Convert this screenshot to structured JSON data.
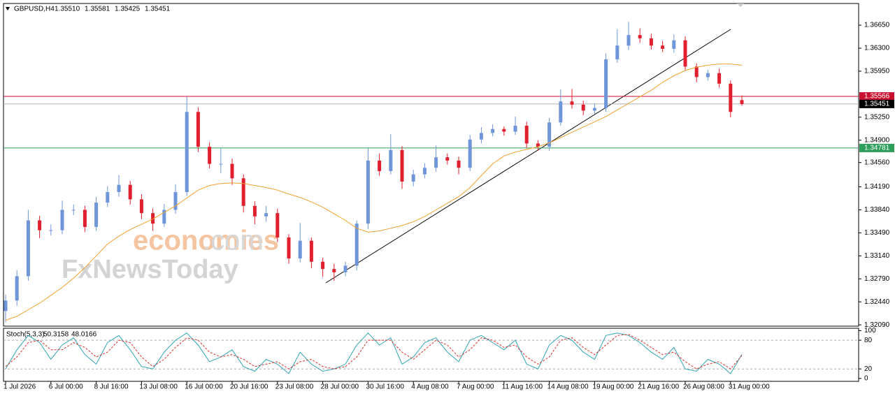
{
  "chart_data": [
    {
      "type": "candlestick",
      "title": "GBPUSD,H4",
      "ohlc_labels": [
        "1.35510",
        "1.35581",
        "1.35425",
        "1.35451"
      ],
      "categories": [
        "1 Jul 2026",
        null,
        null,
        null,
        "6 Jul 00:00",
        null,
        null,
        null,
        "8 Jul 16:00",
        null,
        null,
        null,
        "13 Jul 08:00",
        null,
        null,
        null,
        "16 Jul 00:00",
        null,
        null,
        null,
        "20 Jul 16:00",
        null,
        null,
        null,
        "23 Jul 08:00",
        null,
        null,
        null,
        "28 Jul 00:00",
        null,
        null,
        null,
        "30 Jul 16:00",
        null,
        null,
        null,
        "4 Aug 08:00",
        null,
        null,
        null,
        "7 Aug 00:00",
        null,
        null,
        null,
        "11 Aug 16:00",
        null,
        null,
        null,
        "14 Aug 08:00",
        null,
        null,
        null,
        "19 Aug 00:00",
        null,
        null,
        null,
        "21 Aug 16:00",
        null,
        null,
        null,
        "26 Aug 08:00",
        null,
        null,
        null,
        "31 Aug 00:00",
        null
      ],
      "open": [
        1.323,
        1.3246,
        1.3283,
        1.3368,
        1.3353,
        1.3353,
        1.3384,
        1.3384,
        1.3358,
        1.3395,
        1.3411,
        1.3422,
        1.34,
        1.3379,
        1.3363,
        1.3384,
        1.3411,
        1.3533,
        1.348,
        1.3454,
        1.3454,
        1.3432,
        1.339,
        1.3374,
        1.3379,
        1.3342,
        1.331,
        1.3337,
        1.3305,
        1.3294,
        1.3289,
        1.3299,
        1.3363,
        1.3459,
        1.3443,
        1.3475,
        1.3427,
        1.3438,
        1.3448,
        1.3464,
        1.3459,
        1.3448,
        1.3491,
        1.3501,
        1.3507,
        1.3503,
        1.3512,
        1.3485,
        1.348,
        1.3517,
        1.3549,
        1.3544,
        1.3535,
        1.3539,
        1.3613,
        1.3634,
        1.365,
        1.3645,
        1.3634,
        1.3629,
        1.3642,
        1.3602,
        1.3586,
        1.3592,
        1.3576,
        1.3551
      ],
      "high": [
        1.3255,
        1.3292,
        1.3384,
        1.3375,
        1.3362,
        1.3398,
        1.3392,
        1.339,
        1.3404,
        1.342,
        1.3437,
        1.3428,
        1.3408,
        1.3386,
        1.3393,
        1.3423,
        1.3556,
        1.354,
        1.3487,
        1.3478,
        1.3462,
        1.3438,
        1.3397,
        1.339,
        1.3386,
        1.3347,
        1.3364,
        1.3342,
        1.3311,
        1.3302,
        1.3305,
        1.3368,
        1.3478,
        1.347,
        1.3499,
        1.3481,
        1.3445,
        1.3455,
        1.3482,
        1.347,
        1.3465,
        1.3498,
        1.351,
        1.3514,
        1.3511,
        1.3526,
        1.3518,
        1.349,
        1.3524,
        1.3567,
        1.3568,
        1.355,
        1.3546,
        1.3622,
        1.3659,
        1.367,
        1.366,
        1.3652,
        1.3641,
        1.3651,
        1.3648,
        1.3607,
        1.3597,
        1.3599,
        1.3581,
        1.35581
      ],
      "low": [
        1.3213,
        1.3238,
        1.3276,
        1.3341,
        1.3345,
        1.3347,
        1.3376,
        1.335,
        1.3352,
        1.3388,
        1.3404,
        1.3392,
        1.337,
        1.3352,
        1.3358,
        1.3378,
        1.3405,
        1.3472,
        1.3447,
        1.344,
        1.3422,
        1.338,
        1.3362,
        1.3366,
        1.3335,
        1.3302,
        1.3304,
        1.3295,
        1.3282,
        1.3276,
        1.3283,
        1.3292,
        1.3355,
        1.3436,
        1.3438,
        1.3416,
        1.342,
        1.3432,
        1.3442,
        1.3453,
        1.3438,
        1.3443,
        1.3485,
        1.3496,
        1.3497,
        1.3498,
        1.3478,
        1.3474,
        1.3474,
        1.3512,
        1.3538,
        1.3528,
        1.353,
        1.3533,
        1.3608,
        1.3627,
        1.3638,
        1.3628,
        1.3624,
        1.3623,
        1.3596,
        1.3578,
        1.3581,
        1.357,
        1.3525,
        1.35425
      ],
      "close": [
        1.3246,
        1.3283,
        1.3368,
        1.3353,
        1.3353,
        1.3384,
        1.3384,
        1.3358,
        1.3395,
        1.3411,
        1.3422,
        1.34,
        1.3379,
        1.3363,
        1.3384,
        1.3411,
        1.3533,
        1.348,
        1.3454,
        1.3454,
        1.3432,
        1.339,
        1.3374,
        1.3379,
        1.3342,
        1.331,
        1.3337,
        1.3305,
        1.3294,
        1.3289,
        1.3299,
        1.3363,
        1.3459,
        1.3443,
        1.3475,
        1.3427,
        1.3438,
        1.3448,
        1.3464,
        1.3459,
        1.3448,
        1.3491,
        1.3501,
        1.3507,
        1.3503,
        1.3512,
        1.3485,
        1.348,
        1.3517,
        1.3549,
        1.3544,
        1.3535,
        1.3539,
        1.3613,
        1.3634,
        1.365,
        1.3645,
        1.3634,
        1.3629,
        1.3642,
        1.3602,
        1.3586,
        1.3592,
        1.3576,
        1.3533,
        1.35451
      ],
      "ma": [
        1.3216,
        1.3222,
        1.3232,
        1.3242,
        1.3254,
        1.3266,
        1.328,
        1.3296,
        1.3314,
        1.3332,
        1.3344,
        1.3354,
        1.3362,
        1.337,
        1.338,
        1.339,
        1.3402,
        1.3414,
        1.3421,
        1.3424,
        1.3425,
        1.3424,
        1.3421,
        1.3418,
        1.3414,
        1.3408,
        1.3403,
        1.3396,
        1.3388,
        1.3378,
        1.3368,
        1.3356,
        1.335,
        1.3352,
        1.3356,
        1.336,
        1.3366,
        1.3374,
        1.3384,
        1.3394,
        1.3404,
        1.3418,
        1.3436,
        1.3454,
        1.3466,
        1.3472,
        1.3476,
        1.348,
        1.3486,
        1.3494,
        1.3502,
        1.351,
        1.3518,
        1.3526,
        1.3536,
        1.3546,
        1.3556,
        1.3566,
        1.3578,
        1.3588,
        1.3596,
        1.3601,
        1.3604,
        1.3606,
        1.3606,
        1.3604
      ],
      "up_color": "#6f96d8",
      "down_color": "#e0202e",
      "ma_color": "#f0a030",
      "levels": [
        {
          "value": 1.35566,
          "label": "1.35566",
          "color": "#c8102e"
        },
        {
          "value": 1.34781,
          "label": "1.34781",
          "color": "#2e9e5b"
        }
      ],
      "ylim": [
        1.3207,
        1.3698
      ],
      "yticks": [
        {
          "value": 1.3209,
          "label": "1.32090"
        },
        {
          "value": 1.3244,
          "label": "1.32440"
        },
        {
          "value": 1.3279,
          "label": "1.32790"
        },
        {
          "value": 1.3314,
          "label": "1.33140"
        },
        {
          "value": 1.3349,
          "label": "1.33490"
        },
        {
          "value": 1.3384,
          "label": "1.33840"
        },
        {
          "value": 1.3419,
          "label": "1.34190"
        },
        {
          "value": 1.3456,
          "label": "1.34560"
        },
        {
          "value": 1.349,
          "label": "1.34900"
        },
        {
          "value": 1.3525,
          "label": "1.35250"
        },
        {
          "value": 1.3595,
          "label": "1.35950"
        },
        {
          "value": 1.363,
          "label": "1.36300"
        },
        {
          "value": 1.3665,
          "label": "1.36650"
        }
      ]
    },
    {
      "type": "line",
      "title": "Stoch(5,3,3)",
      "series": [
        {
          "color": "#30a5b5",
          "values": [
            20,
            60,
            90,
            75,
            40,
            70,
            85,
            50,
            30,
            75,
            90,
            60,
            25,
            20,
            55,
            80,
            95,
            70,
            35,
            45,
            60,
            25,
            15,
            40,
            30,
            10,
            55,
            30,
            15,
            20,
            30,
            70,
            95,
            70,
            85,
            30,
            45,
            75,
            85,
            55,
            35,
            80,
            90,
            75,
            60,
            80,
            30,
            20,
            70,
            90,
            80,
            55,
            40,
            90,
            95,
            90,
            75,
            55,
            40,
            65,
            20,
            15,
            40,
            30,
            10,
            50.3158
          ]
        },
        {
          "color": "#d9322e",
          "dashed": true,
          "values": [
            25,
            45,
            75,
            80,
            60,
            60,
            75,
            65,
            45,
            55,
            80,
            75,
            45,
            25,
            40,
            65,
            85,
            80,
            55,
            45,
            50,
            40,
            25,
            30,
            35,
            20,
            35,
            40,
            25,
            20,
            25,
            45,
            80,
            80,
            80,
            55,
            40,
            60,
            80,
            70,
            45,
            60,
            85,
            80,
            65,
            70,
            45,
            30,
            45,
            80,
            85,
            65,
            50,
            70,
            90,
            92,
            80,
            65,
            50,
            55,
            35,
            20,
            30,
            35,
            20,
            48.0166
          ]
        }
      ],
      "levels": [
        20,
        80
      ],
      "ylim": [
        -6,
        105
      ],
      "yticks": [
        0,
        20,
        80,
        100
      ]
    }
  ],
  "watermark": [
    "economies",
    ".com",
    "FxNewsToday"
  ]
}
